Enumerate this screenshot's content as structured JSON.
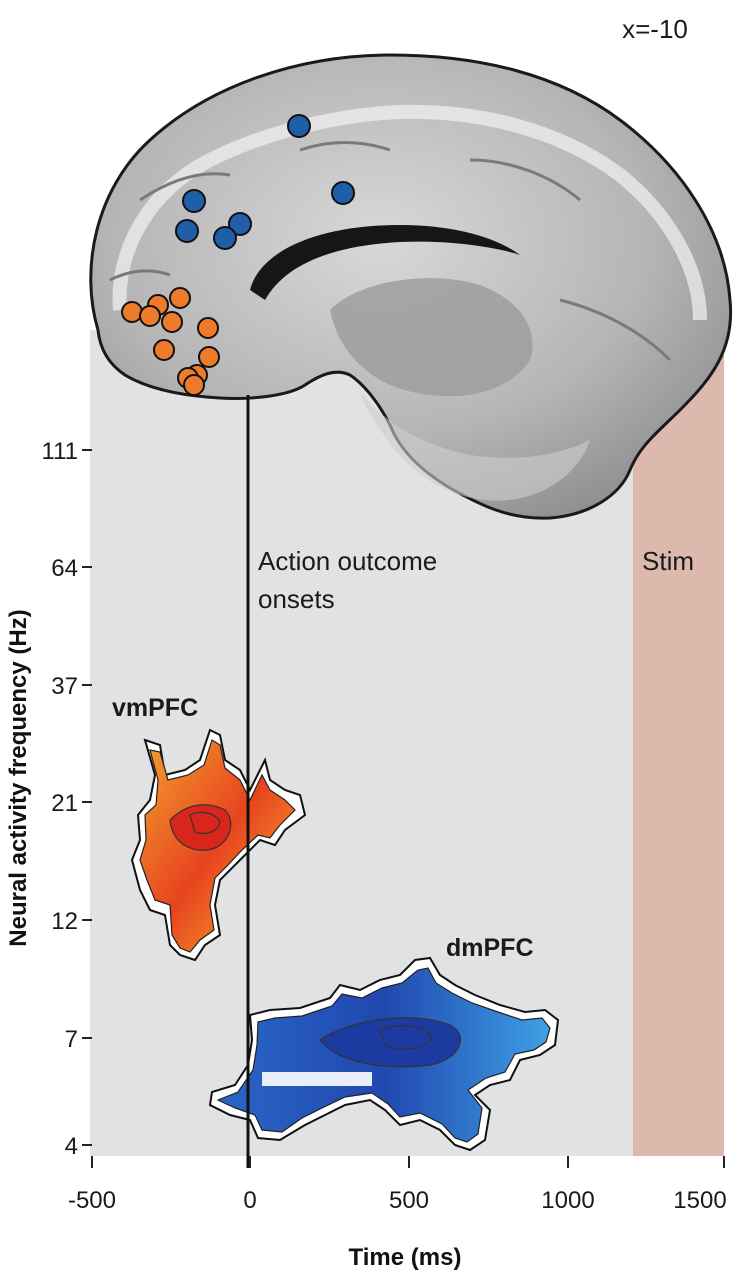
{
  "slice_label": "x=-10",
  "colors": {
    "shaded_window": "#e1e2e4",
    "stim_band": "#ddb9ad",
    "vmpfc_dots": "#ee7b2b",
    "dmpfc_dots": "#1f5fa8"
  },
  "annotations": {
    "onset_line": "Action outcome onsets",
    "onset_line_l1": "Action outcome",
    "onset_line_l2": "onsets",
    "stim": "Stim"
  },
  "regions": {
    "vmpfc": "vmPFC",
    "dmpfc": "dmPFC"
  },
  "chart_data": {
    "type": "heatmap",
    "xlabel": "Time (ms)",
    "ylabel": "Neural activity frequency (Hz)",
    "x_ticks": [
      -500,
      0,
      500,
      1000,
      1500
    ],
    "y_ticks": [
      4,
      7,
      12,
      21,
      37,
      64,
      111
    ],
    "y_scale": "log",
    "xlim": [
      -500,
      1500
    ],
    "shaded_window_ms": [
      -500,
      1220
    ],
    "stim_window_ms": [
      1220,
      1510
    ],
    "onset_ms": 0,
    "clusters": [
      {
        "name": "vmPFC",
        "time_range_ms": [
          -370,
          200
        ],
        "freq_range_hz": [
          10,
          30
        ]
      },
      {
        "name": "dmPFC",
        "time_range_ms": [
          -120,
          970
        ],
        "freq_range_hz": [
          4,
          10
        ]
      }
    ]
  }
}
